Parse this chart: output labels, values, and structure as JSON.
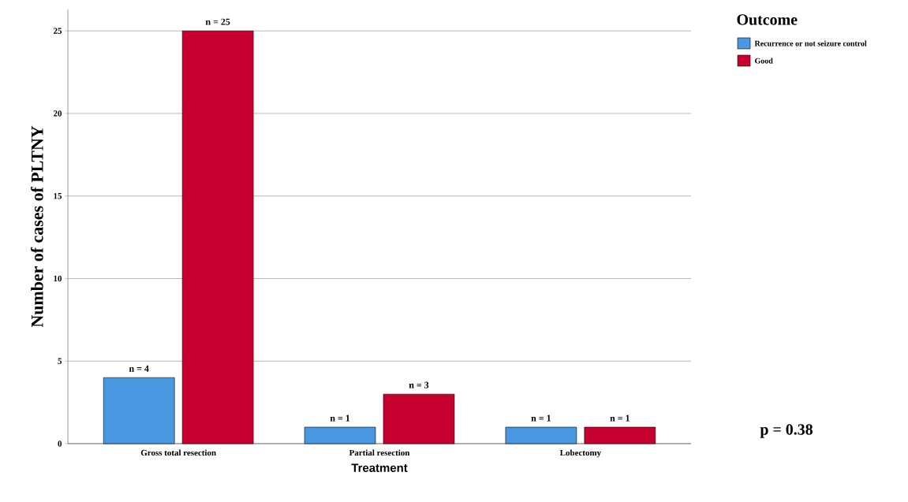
{
  "chart_data": {
    "type": "bar",
    "xlabel": "Treatment",
    "ylabel": "Number of cases of PLTNY",
    "legend_title": "Outcome",
    "categories": [
      "Gross total resection",
      "Partial resection",
      "Lobectomy"
    ],
    "series": [
      {
        "name": "Recurrence or not seizure control",
        "color": "#4a98e2",
        "values": [
          4,
          1,
          1
        ],
        "value_labels": [
          "n = 4",
          "n = 1",
          "n = 1"
        ]
      },
      {
        "name": "Good",
        "color": "#c8002f",
        "values": [
          25,
          3,
          1
        ],
        "value_labels": [
          "n = 25",
          "n = 3",
          "n = 1"
        ]
      }
    ],
    "ylim": [
      0,
      26.3
    ],
    "yticks": [
      0,
      5,
      10,
      15,
      20,
      25
    ],
    "grid": "y",
    "legend": "top right",
    "annotations": [
      "p = 0.38"
    ]
  }
}
